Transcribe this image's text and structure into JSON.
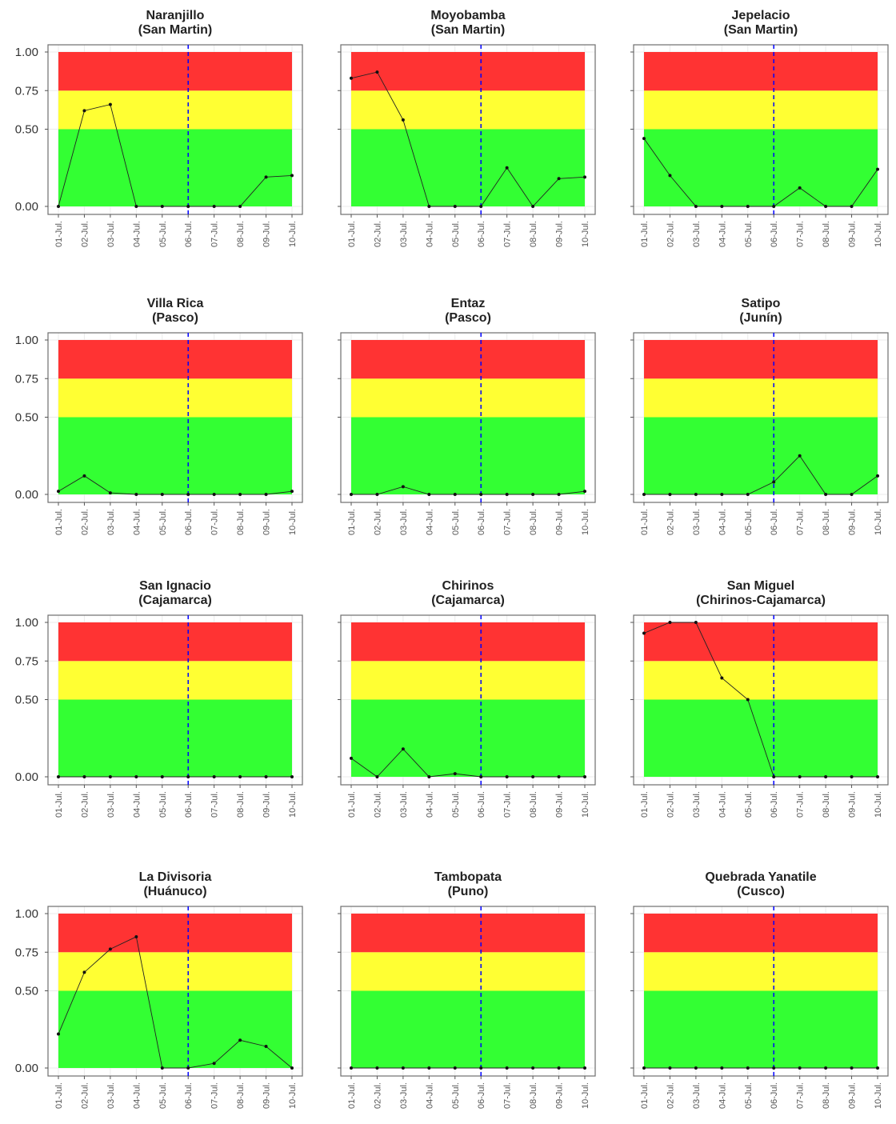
{
  "chart_data": {
    "type": "line",
    "layout": "small-multiples 4x3",
    "x_categories": [
      "01-Jul.",
      "02-Jul.",
      "03-Jul.",
      "04-Jul.",
      "05-Jul.",
      "06-Jul.",
      "07-Jul.",
      "08-Jul.",
      "09-Jul.",
      "10-Jul."
    ],
    "y_ticks": [
      "0.00",
      "0.50",
      "0.75",
      "1.00"
    ],
    "ylim": [
      0,
      1
    ],
    "reference_line": "06-Jul.",
    "bands": [
      {
        "from": 0,
        "to": 0.5,
        "color": "#33ff33"
      },
      {
        "from": 0.5,
        "to": 0.75,
        "color": "#ffff33"
      },
      {
        "from": 0.75,
        "to": 1,
        "color": "#ff3333"
      }
    ],
    "reference_color": "#0000ff",
    "panels": [
      {
        "title": "Naranjillo",
        "subtitle": "(San Martin)",
        "values": [
          0,
          0.62,
          0.66,
          0,
          0,
          0,
          0,
          0,
          0.19,
          0.2
        ]
      },
      {
        "title": "Moyobamba",
        "subtitle": "(San Martin)",
        "values": [
          0.83,
          0.87,
          0.56,
          0,
          0,
          0,
          0.25,
          0,
          0.18,
          0.19
        ]
      },
      {
        "title": "Jepelacio",
        "subtitle": "(San Martin)",
        "values": [
          0.44,
          0.2,
          0,
          0,
          0,
          0,
          0.12,
          0,
          0,
          0.24
        ]
      },
      {
        "title": "Villa Rica",
        "subtitle": "(Pasco)",
        "values": [
          0.02,
          0.12,
          0.01,
          0,
          0,
          0,
          0,
          0,
          0,
          0.02
        ]
      },
      {
        "title": "Entaz",
        "subtitle": "(Pasco)",
        "values": [
          0,
          0,
          0.05,
          0,
          0,
          0,
          0,
          0,
          0,
          0.02
        ]
      },
      {
        "title": "Satipo",
        "subtitle": "(Junín)",
        "values": [
          0,
          0,
          0,
          0,
          0,
          0.08,
          0.25,
          0,
          0,
          0.12
        ]
      },
      {
        "title": "San Ignacio",
        "subtitle": "(Cajamarca)",
        "values": [
          0,
          0,
          0,
          0,
          0,
          0,
          0,
          0,
          0,
          0
        ]
      },
      {
        "title": "Chirinos",
        "subtitle": "(Cajamarca)",
        "values": [
          0.12,
          0,
          0.18,
          0,
          0.02,
          0,
          0,
          0,
          0,
          0
        ]
      },
      {
        "title": "San Miguel",
        "subtitle": "(Chirinos-Cajamarca)",
        "values": [
          0.93,
          1.0,
          1.0,
          0.64,
          0.5,
          0,
          0,
          0,
          0,
          0
        ]
      },
      {
        "title": "La Divisoria",
        "subtitle": "(Huánuco)",
        "values": [
          0.22,
          0.62,
          0.77,
          0.85,
          0,
          0,
          0.03,
          0.18,
          0.14,
          0
        ]
      },
      {
        "title": "Tambopata",
        "subtitle": "(Puno)",
        "values": [
          0,
          0,
          0,
          0,
          0,
          0,
          0,
          0,
          0,
          0
        ]
      },
      {
        "title": "Quebrada Yanatile",
        "subtitle": "(Cusco)",
        "values": [
          0,
          0,
          0,
          0,
          0,
          0,
          0,
          0,
          0,
          0
        ]
      }
    ]
  }
}
